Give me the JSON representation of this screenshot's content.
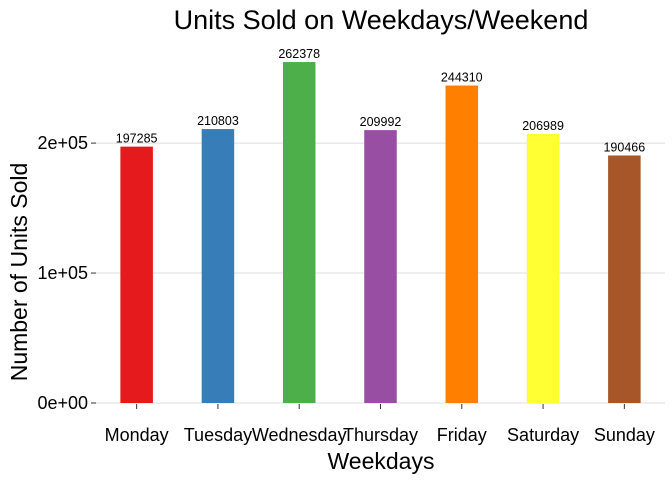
{
  "chart_data": {
    "type": "bar",
    "title": "Units Sold on Weekdays/Weekend",
    "xlabel": "Weekdays",
    "ylabel": "Number of Units Sold",
    "categories": [
      "Monday",
      "Tuesday",
      "Wednesday",
      "Thursday",
      "Friday",
      "Saturday",
      "Sunday"
    ],
    "values": [
      197285,
      210803,
      262378,
      209992,
      244310,
      206989,
      190466
    ],
    "colors": [
      "#E41A1C",
      "#377EB8",
      "#4DAF4A",
      "#984EA3",
      "#FF7F00",
      "#FFFF33",
      "#A65628"
    ],
    "ylim": [
      0,
      275497
    ],
    "yticks": [
      0,
      100000,
      200000
    ],
    "ytick_labels": [
      "0e+00",
      "1e+05",
      "2e+05"
    ],
    "grid": true,
    "legend": "none"
  }
}
